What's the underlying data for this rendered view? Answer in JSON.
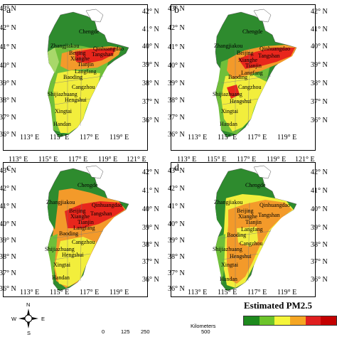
{
  "panels": [
    {
      "label": "a",
      "lat_left": [
        "43° N",
        "42° N",
        "41° N",
        "40° N",
        "39° N",
        "38° N",
        "37° N",
        "36° N"
      ],
      "lat_right": [
        "42° N",
        "41° N",
        "40° N",
        "39° N",
        "38° N",
        "37° N",
        "36° N"
      ],
      "lon_bottom": [
        "113° E",
        "115° E",
        "117° E",
        "119° E"
      ]
    },
    {
      "label": "b",
      "lat_left": [
        "43° N",
        "42° N",
        "41° N",
        "40° N",
        "39° N",
        "38° N",
        "37° N",
        "36° N"
      ],
      "lat_right": [
        "42° N",
        "41° N",
        "40° N",
        "39° N",
        "38° N",
        "37° N",
        "36° N"
      ],
      "lon_bottom": [
        "113° E",
        "115° E",
        "117° E",
        "119° E"
      ]
    },
    {
      "label": "c",
      "lon_top": [
        "113° E",
        "115° E",
        "117° E",
        "119° E",
        "121° E"
      ],
      "lat_left": [
        "43° N",
        "42° N",
        "41° N",
        "40° N",
        "39° N",
        "38° N",
        "37° N",
        "36° N"
      ],
      "lat_right": [
        "42° N",
        "41° N",
        "40° N",
        "39° N",
        "38° N",
        "37° N",
        "36° N"
      ],
      "lon_bottom": [
        "113° E",
        "115° E",
        "117° E",
        "119° E"
      ]
    },
    {
      "label": "d",
      "lon_top": [
        "113° E",
        "115° E",
        "117° E",
        "119° E",
        "121° E"
      ],
      "lat_left": [
        "43° N",
        "42° N",
        "41° N",
        "40° N",
        "39° N",
        "38° N",
        "37° N",
        "36° N"
      ],
      "lat_right": [
        "42° N",
        "41° N",
        "40° N",
        "39° N",
        "38° N",
        "37° N",
        "36° N"
      ],
      "lon_bottom": [
        "113° E",
        "115° E",
        "117° E",
        "119° E"
      ]
    }
  ],
  "cities": [
    "Chengde",
    "Zhangjiakou",
    "Qinhuangdao",
    "Beijing",
    "Tangshan",
    "Xianghe",
    "Tianjin",
    "Langfang",
    "Baoding",
    "Cangzhou",
    "Shijiazhuang",
    "Hengshui",
    "Xingtai",
    "Handan"
  ],
  "compass": {
    "n": "N",
    "w": "W",
    "e": "E",
    "s": "S"
  },
  "scale_bar": {
    "ticks": [
      "0",
      "125",
      "250",
      "500"
    ],
    "unit": "Kilometers"
  },
  "legend": {
    "title": "Estimated PM2.5",
    "colors": [
      "#1d8a1d",
      "#6cc42a",
      "#f5f53a",
      "#f5a623",
      "#e01f1f",
      "#c40000"
    ]
  },
  "colors": {
    "dark_green": "#2e8b2e",
    "green": "#6fbf3a",
    "light_green": "#a8d86a",
    "yellow": "#f2ee3c",
    "orange": "#f39a2a",
    "red": "#e8261c"
  }
}
